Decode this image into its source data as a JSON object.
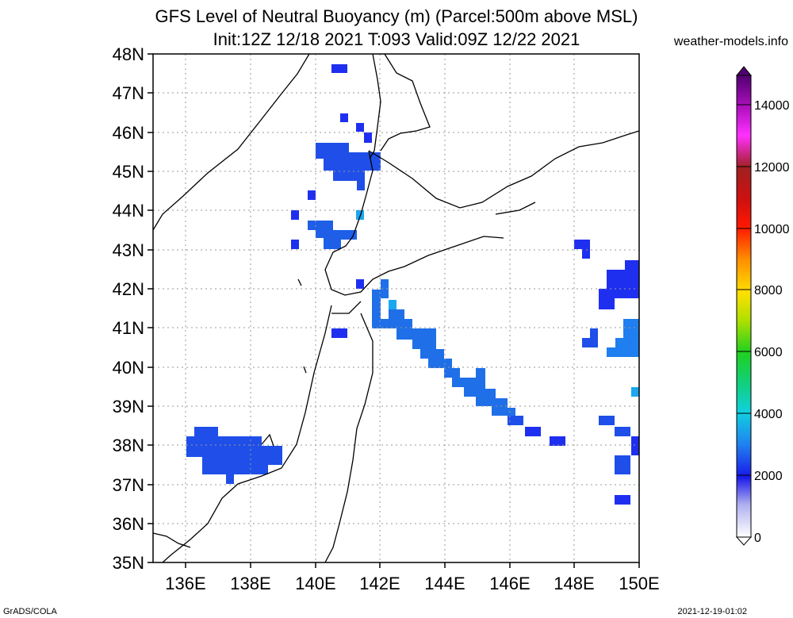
{
  "title_line1": "GFS Level of Neutral Buoyancy (m) (Parcel:500m above MSL)",
  "title_line2": "Init:12Z 12/18 2021 T:093 Valid:09Z 12/22 2021",
  "credit": "weather-models.info",
  "footer_left": "GrADS/COLA",
  "footer_right": "2021-12-19-01:02",
  "map": {
    "lat_labels": [
      "48N",
      "47N",
      "46N",
      "45N",
      "44N",
      "43N",
      "42N",
      "41N",
      "40N",
      "39N",
      "38N",
      "37N",
      "36N",
      "35N"
    ],
    "lon_labels": [
      "136E",
      "138E",
      "140E",
      "142E",
      "144E",
      "146E",
      "148E",
      "150E"
    ]
  },
  "colorbar": {
    "tick_labels": [
      "14000",
      "12000",
      "10000",
      "8000",
      "6000",
      "4000",
      "2000",
      "0"
    ]
  },
  "colors": {
    "low": "#1f2ff0",
    "mid": "#1f6fe8",
    "high": "#19a8f0",
    "coast": "#000000"
  }
}
